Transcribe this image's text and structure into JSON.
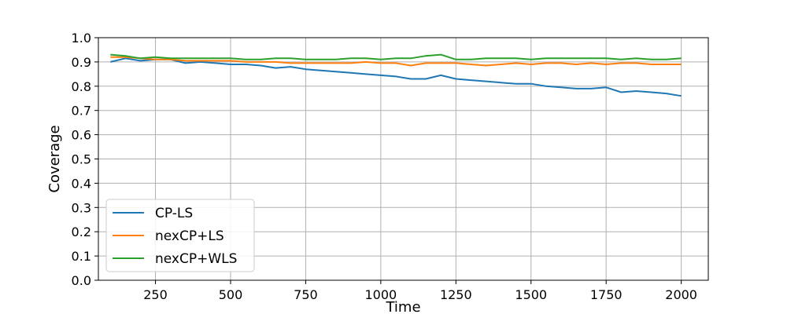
{
  "chart_data": {
    "type": "line",
    "title": "",
    "xlabel": "Time",
    "ylabel": "Coverage",
    "xlim": [
      60,
      2090
    ],
    "ylim": [
      0.0,
      1.0
    ],
    "x_ticks": [
      250,
      500,
      750,
      1000,
      1250,
      1500,
      1750,
      2000
    ],
    "y_ticks": [
      0.0,
      0.1,
      0.2,
      0.3,
      0.4,
      0.5,
      0.6,
      0.7,
      0.8,
      0.9,
      1.0
    ],
    "x_tick_labels": [
      "250",
      "500",
      "750",
      "1000",
      "1250",
      "1500",
      "1750",
      "2000"
    ],
    "y_tick_labels": [
      "0.0",
      "0.1",
      "0.2",
      "0.3",
      "0.4",
      "0.5",
      "0.6",
      "0.7",
      "0.8",
      "0.9",
      "1.0"
    ],
    "grid": true,
    "legend_position": "lower-left",
    "series": [
      {
        "name": "CP-LS",
        "color": "#1f77b4",
        "x": [
          100,
          150,
          200,
          250,
          300,
          350,
          400,
          450,
          500,
          550,
          600,
          650,
          700,
          750,
          800,
          850,
          900,
          950,
          1000,
          1050,
          1100,
          1150,
          1200,
          1250,
          1300,
          1350,
          1400,
          1450,
          1500,
          1550,
          1600,
          1650,
          1700,
          1750,
          1800,
          1850,
          1900,
          1950,
          2000
        ],
        "values": [
          0.9,
          0.915,
          0.905,
          0.91,
          0.91,
          0.895,
          0.9,
          0.895,
          0.89,
          0.89,
          0.885,
          0.875,
          0.88,
          0.87,
          0.865,
          0.86,
          0.855,
          0.85,
          0.845,
          0.84,
          0.83,
          0.83,
          0.845,
          0.83,
          0.825,
          0.82,
          0.815,
          0.81,
          0.81,
          0.8,
          0.795,
          0.79,
          0.79,
          0.795,
          0.775,
          0.78,
          0.775,
          0.77,
          0.76
        ]
      },
      {
        "name": "nexCP+LS",
        "color": "#ff7f0e",
        "x": [
          100,
          150,
          200,
          250,
          300,
          350,
          400,
          450,
          500,
          550,
          600,
          650,
          700,
          750,
          800,
          850,
          900,
          950,
          1000,
          1050,
          1100,
          1150,
          1200,
          1250,
          1300,
          1350,
          1400,
          1450,
          1500,
          1550,
          1600,
          1650,
          1700,
          1750,
          1800,
          1850,
          1900,
          1950,
          2000
        ],
        "values": [
          0.92,
          0.92,
          0.915,
          0.91,
          0.91,
          0.905,
          0.905,
          0.905,
          0.905,
          0.9,
          0.9,
          0.9,
          0.895,
          0.895,
          0.895,
          0.895,
          0.895,
          0.9,
          0.895,
          0.895,
          0.885,
          0.895,
          0.895,
          0.895,
          0.89,
          0.885,
          0.89,
          0.895,
          0.89,
          0.895,
          0.895,
          0.89,
          0.895,
          0.89,
          0.895,
          0.895,
          0.89,
          0.89,
          0.89
        ]
      },
      {
        "name": "nexCP+WLS",
        "color": "#2ca02c",
        "x": [
          100,
          150,
          200,
          250,
          300,
          350,
          400,
          450,
          500,
          550,
          600,
          650,
          700,
          750,
          800,
          850,
          900,
          950,
          1000,
          1050,
          1100,
          1150,
          1200,
          1250,
          1300,
          1350,
          1400,
          1450,
          1500,
          1550,
          1600,
          1650,
          1700,
          1750,
          1800,
          1850,
          1900,
          1950,
          2000
        ],
        "values": [
          0.93,
          0.925,
          0.915,
          0.92,
          0.915,
          0.915,
          0.915,
          0.915,
          0.915,
          0.91,
          0.91,
          0.915,
          0.915,
          0.91,
          0.91,
          0.91,
          0.915,
          0.915,
          0.91,
          0.915,
          0.915,
          0.925,
          0.93,
          0.91,
          0.91,
          0.915,
          0.915,
          0.915,
          0.91,
          0.915,
          0.915,
          0.915,
          0.915,
          0.915,
          0.91,
          0.915,
          0.91,
          0.91,
          0.915
        ]
      }
    ]
  }
}
